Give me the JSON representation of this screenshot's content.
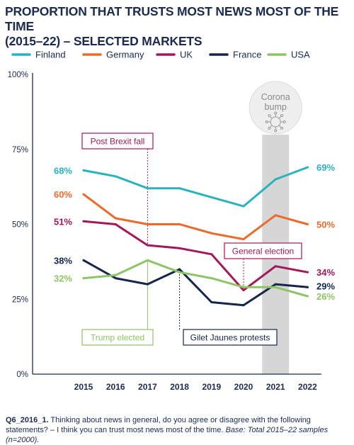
{
  "title": {
    "line1": "PROPORTION THAT TRUSTS MOST NEWS MOST OF THE TIME",
    "line2": "(2015–22) – SELECTED MARKETS"
  },
  "caption": {
    "id": "Q6_2016_1.",
    "question": " Thinking about news in general, do you agree or disagree with the following statements? – I think you can trust most news most of the time. ",
    "base": "Base: Total 2015–22 samples (n=2000)."
  },
  "colors": {
    "Finland": "#29b3bd",
    "Germany": "#ec6a2a",
    "UK": "#a3185a",
    "France": "#15264a",
    "USA": "#8dc565",
    "axis": "#1b2a4e",
    "highlight": "#d6d6d6"
  },
  "chart_data": {
    "type": "line",
    "x": [
      "2015",
      "2016",
      "2017",
      "2018",
      "2019",
      "2020",
      "2021",
      "2022"
    ],
    "ylim": [
      0,
      100
    ],
    "y_ticks": [
      "0%",
      "25%",
      "50%",
      "75%",
      "100%"
    ],
    "grid": false,
    "legend_position": "top",
    "series": [
      {
        "name": "Finland",
        "values": [
          68,
          66,
          62,
          62,
          59,
          56,
          65,
          69
        ],
        "start_label": "68%",
        "end_label": "69%"
      },
      {
        "name": "Germany",
        "values": [
          60,
          52,
          50,
          50,
          47,
          45,
          53,
          50
        ],
        "start_label": "60%",
        "end_label": "50%"
      },
      {
        "name": "UK",
        "values": [
          51,
          50,
          43,
          42,
          40,
          28,
          36,
          34
        ],
        "start_label": "51%",
        "end_label": "34%"
      },
      {
        "name": "France",
        "values": [
          38,
          32,
          30,
          35,
          24,
          23,
          30,
          29
        ],
        "start_label": "38%",
        "end_label": "29%"
      },
      {
        "name": "USA",
        "values": [
          32,
          33,
          38,
          34,
          32,
          29,
          29,
          26
        ],
        "start_label": "32%",
        "end_label": "26%"
      }
    ],
    "highlight": {
      "x": "2021",
      "label_line1": "Corona",
      "label_line2": "bump",
      "icon": "virus-icon"
    },
    "annotations": [
      {
        "text": "Post Brexit fall",
        "x": "2017",
        "series": "UK"
      },
      {
        "text": "Trump elected",
        "x": "2017",
        "series": "USA"
      },
      {
        "text": "Gilet Jaunes protests",
        "x": "2018",
        "series": "France"
      },
      {
        "text": "General election",
        "x": "2020",
        "series": "UK"
      }
    ]
  }
}
